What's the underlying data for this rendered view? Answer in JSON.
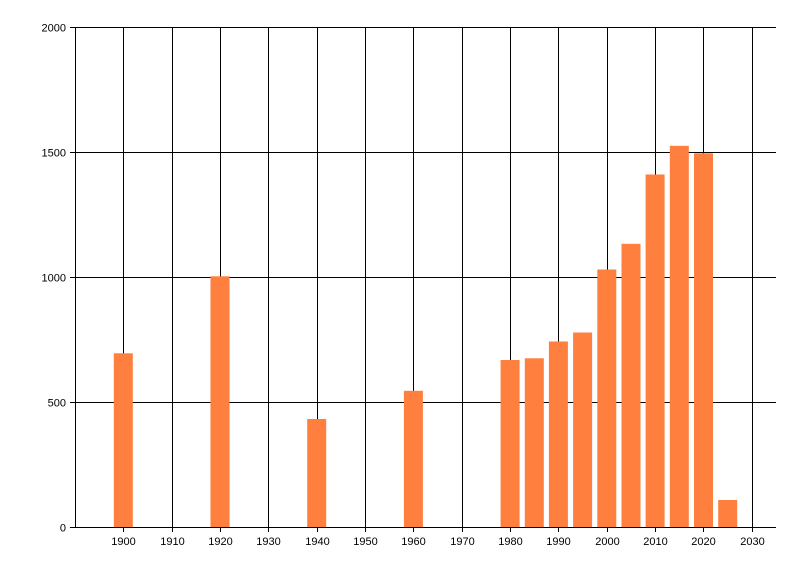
{
  "chart_data": {
    "type": "bar",
    "x": [
      1900,
      1920,
      1940,
      1960,
      1980,
      1985,
      1990,
      1995,
      2000,
      2005,
      2010,
      2015,
      2020,
      2025
    ],
    "values": [
      695,
      1003,
      432,
      545,
      668,
      675,
      742,
      778,
      1030,
      1133,
      1410,
      1525,
      1495,
      108
    ],
    "xlim": [
      1890,
      2035
    ],
    "ylim": [
      0,
      2000
    ],
    "x_ticks": [
      1900,
      1910,
      1920,
      1930,
      1940,
      1950,
      1960,
      1970,
      1980,
      1990,
      2000,
      2010,
      2020,
      2030
    ],
    "y_ticks": [
      0,
      500,
      1000,
      1500,
      2000
    ],
    "grid": true,
    "legend": "none",
    "title": "",
    "xlabel": "",
    "ylabel": "",
    "bar_color": "#ff7f3f",
    "grid_color": "#000000"
  }
}
